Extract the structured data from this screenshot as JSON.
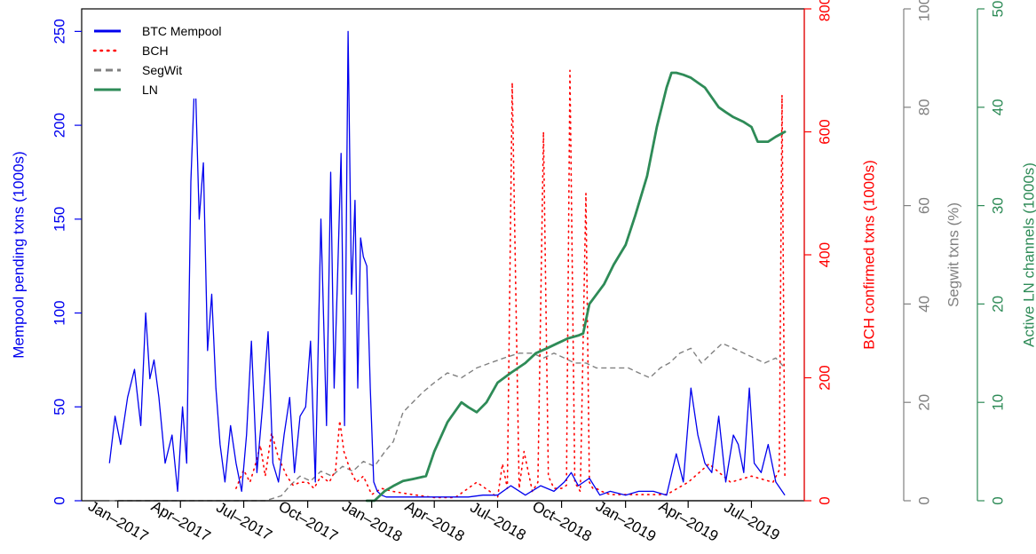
{
  "chart_data": {
    "type": "line",
    "x_ticks": [
      "Jan–2017",
      "Apr–2017",
      "Jul–2017",
      "Oct–2017",
      "Jan–2018",
      "Apr–2018",
      "Jul–2018",
      "Oct–2018",
      "Jan–2019",
      "Apr–2019",
      "Jul–2019"
    ],
    "xlim": [
      "2016-11-10",
      "2019-09-15"
    ],
    "legend": {
      "position": "top-left",
      "entries": [
        {
          "label": "BTC Mempool",
          "color": "#0000ee",
          "style": "solid"
        },
        {
          "label": "BCH",
          "color": "#ff0000",
          "style": "dotted"
        },
        {
          "label": "SegWit",
          "color": "#808080",
          "style": "dashed"
        },
        {
          "label": "LN",
          "color": "#2e8b57",
          "style": "solid"
        }
      ]
    },
    "axes": [
      {
        "id": "mempool",
        "label": "Mempool pending txns (1000s)",
        "color": "#0000ee",
        "ylim": [
          0,
          262
        ],
        "ticks": [
          0,
          50,
          100,
          150,
          200,
          250
        ]
      },
      {
        "id": "bch",
        "label": "BCH confirmed txns (1000s)",
        "color": "#ff0000",
        "ylim": [
          0,
          800
        ],
        "ticks": [
          0,
          200,
          400,
          600,
          800
        ]
      },
      {
        "id": "segwit",
        "label": "Segwit txns (%)",
        "color": "#808080",
        "ylim": [
          0,
          100
        ],
        "ticks": [
          0,
          20,
          40,
          60,
          80,
          100
        ]
      },
      {
        "id": "ln",
        "label": "Active LN channels (1000s)",
        "color": "#2e8b57",
        "ylim": [
          0,
          50
        ],
        "ticks": [
          0,
          10,
          20,
          30,
          40,
          50
        ]
      }
    ],
    "series": [
      {
        "name": "BTC Mempool",
        "axis": "mempool",
        "x": [
          "2016-12-20",
          "2016-12-28",
          "2017-01-05",
          "2017-01-15",
          "2017-01-25",
          "2017-02-03",
          "2017-02-10",
          "2017-02-16",
          "2017-02-22",
          "2017-03-01",
          "2017-03-10",
          "2017-03-20",
          "2017-03-28",
          "2017-04-04",
          "2017-04-10",
          "2017-04-16",
          "2017-04-22",
          "2017-04-28",
          "2017-05-04",
          "2017-05-10",
          "2017-05-16",
          "2017-05-22",
          "2017-05-28",
          "2017-06-04",
          "2017-06-12",
          "2017-06-20",
          "2017-06-28",
          "2017-07-05",
          "2017-07-12",
          "2017-07-20",
          "2017-07-28",
          "2017-08-05",
          "2017-08-12",
          "2017-08-20",
          "2017-08-28",
          "2017-09-05",
          "2017-09-12",
          "2017-09-20",
          "2017-09-28",
          "2017-10-05",
          "2017-10-12",
          "2017-10-20",
          "2017-10-28",
          "2017-11-03",
          "2017-11-08",
          "2017-11-13",
          "2017-11-18",
          "2017-11-23",
          "2017-11-28",
          "2017-12-03",
          "2017-12-08",
          "2017-12-12",
          "2017-12-16",
          "2017-12-20",
          "2017-12-25",
          "2017-12-30",
          "2018-01-04",
          "2018-01-09",
          "2018-01-15",
          "2018-01-22",
          "2018-02-01",
          "2018-02-15",
          "2018-03-01",
          "2018-03-20",
          "2018-04-10",
          "2018-05-01",
          "2018-05-20",
          "2018-06-10",
          "2018-07-01",
          "2018-07-20",
          "2018-08-10",
          "2018-09-01",
          "2018-09-20",
          "2018-10-05",
          "2018-10-15",
          "2018-10-25",
          "2018-11-10",
          "2018-11-25",
          "2018-12-10",
          "2019-01-01",
          "2019-01-20",
          "2019-02-10",
          "2019-03-01",
          "2019-03-15",
          "2019-03-25",
          "2019-04-05",
          "2019-04-15",
          "2019-04-25",
          "2019-05-05",
          "2019-05-15",
          "2019-05-25",
          "2019-06-05",
          "2019-06-12",
          "2019-06-20",
          "2019-06-28",
          "2019-07-05",
          "2019-07-15",
          "2019-07-25",
          "2019-08-05",
          "2019-08-18"
        ],
        "y": [
          20,
          45,
          30,
          55,
          70,
          40,
          100,
          65,
          75,
          55,
          20,
          35,
          5,
          50,
          20,
          170,
          230,
          150,
          180,
          80,
          110,
          60,
          30,
          10,
          40,
          20,
          5,
          35,
          85,
          15,
          50,
          90,
          20,
          10,
          35,
          55,
          15,
          45,
          50,
          85,
          10,
          150,
          40,
          175,
          60,
          120,
          185,
          40,
          250,
          110,
          160,
          60,
          140,
          130,
          125,
          60,
          10,
          5,
          3,
          2,
          2,
          2,
          2,
          2,
          2,
          2,
          2,
          3,
          3,
          8,
          3,
          8,
          5,
          10,
          15,
          8,
          12,
          3,
          5,
          3,
          5,
          5,
          3,
          25,
          10,
          60,
          35,
          20,
          15,
          45,
          10,
          35,
          30,
          15,
          60,
          20,
          15,
          30,
          10,
          3
        ]
      },
      {
        "name": "BCH",
        "axis": "bch",
        "x": [
          "2017-06-20",
          "2017-07-01",
          "2017-07-10",
          "2017-07-18",
          "2017-07-25",
          "2017-08-01",
          "2017-08-10",
          "2017-08-20",
          "2017-09-01",
          "2017-09-10",
          "2017-09-20",
          "2017-10-01",
          "2017-10-10",
          "2017-10-20",
          "2017-11-01",
          "2017-11-10",
          "2017-11-16",
          "2017-11-22",
          "2017-12-01",
          "2017-12-10",
          "2017-12-20",
          "2018-01-01",
          "2018-01-15",
          "2018-02-01",
          "2018-03-01",
          "2018-04-01",
          "2018-05-01",
          "2018-06-01",
          "2018-06-20",
          "2018-07-01",
          "2018-07-08",
          "2018-07-15",
          "2018-07-22",
          "2018-08-01",
          "2018-08-08",
          "2018-08-20",
          "2018-08-28",
          "2018-09-05",
          "2018-09-12",
          "2018-09-20",
          "2018-10-01",
          "2018-10-08",
          "2018-10-13",
          "2018-10-20",
          "2018-10-28",
          "2018-11-05",
          "2018-11-10",
          "2018-11-15",
          "2018-11-20",
          "2018-11-28",
          "2018-12-10",
          "2019-01-01",
          "2019-02-01",
          "2019-03-01",
          "2019-04-01",
          "2019-05-01",
          "2019-06-01",
          "2019-07-01",
          "2019-08-01",
          "2019-08-10",
          "2019-08-14",
          "2019-08-18"
        ],
        "y": [
          20,
          50,
          30,
          60,
          90,
          40,
          110,
          70,
          40,
          25,
          30,
          30,
          20,
          40,
          30,
          50,
          130,
          80,
          50,
          30,
          40,
          10,
          20,
          15,
          10,
          5,
          5,
          30,
          15,
          5,
          60,
          20,
          680,
          20,
          80,
          15,
          30,
          600,
          40,
          20,
          20,
          25,
          700,
          30,
          15,
          500,
          30,
          20,
          20,
          15,
          10,
          10,
          10,
          10,
          30,
          60,
          30,
          40,
          30,
          50,
          660,
          40
        ]
      },
      {
        "name": "SegWit",
        "axis": "segwit",
        "x": [
          "2016-12-20",
          "2017-08-01",
          "2017-08-24",
          "2017-09-05",
          "2017-09-20",
          "2017-10-05",
          "2017-10-20",
          "2017-11-05",
          "2017-11-20",
          "2017-12-05",
          "2017-12-20",
          "2018-01-05",
          "2018-01-20",
          "2018-02-01",
          "2018-02-15",
          "2018-03-01",
          "2018-03-15",
          "2018-04-01",
          "2018-04-20",
          "2018-05-10",
          "2018-06-01",
          "2018-06-20",
          "2018-07-10",
          "2018-08-01",
          "2018-08-20",
          "2018-09-05",
          "2018-09-20",
          "2018-10-05",
          "2018-10-20",
          "2018-11-05",
          "2018-11-20",
          "2018-12-05",
          "2018-12-20",
          "2019-01-05",
          "2019-01-20",
          "2019-02-05",
          "2019-02-20",
          "2019-03-05",
          "2019-03-20",
          "2019-04-05",
          "2019-04-20",
          "2019-05-05",
          "2019-05-20",
          "2019-06-05",
          "2019-06-20",
          "2019-07-05",
          "2019-07-20",
          "2019-08-05",
          "2019-08-18"
        ],
        "y": [
          0,
          0,
          1,
          3,
          5,
          4,
          6,
          5,
          7,
          6,
          8,
          7,
          10,
          12,
          18,
          20,
          22,
          24,
          26,
          25,
          27,
          28,
          29,
          30,
          30,
          29,
          30,
          29,
          28,
          28,
          27,
          27,
          27,
          27,
          26,
          25,
          27,
          28,
          30,
          31,
          28,
          30,
          32,
          31,
          30,
          29,
          28,
          29,
          27
        ]
      },
      {
        "name": "LN",
        "axis": "ln",
        "x": [
          "2017-12-25",
          "2018-01-05",
          "2018-01-20",
          "2018-02-01",
          "2018-02-15",
          "2018-03-01",
          "2018-03-20",
          "2018-04-01",
          "2018-04-20",
          "2018-05-10",
          "2018-05-20",
          "2018-06-01",
          "2018-06-15",
          "2018-07-01",
          "2018-07-20",
          "2018-08-10",
          "2018-08-25",
          "2018-09-10",
          "2018-09-25",
          "2018-10-10",
          "2018-10-25",
          "2018-11-01",
          "2018-11-10",
          "2018-12-01",
          "2018-12-15",
          "2019-01-01",
          "2019-01-15",
          "2019-02-01",
          "2019-02-15",
          "2019-03-01",
          "2019-03-08",
          "2019-03-15",
          "2019-03-25",
          "2019-04-05",
          "2019-04-15",
          "2019-04-25",
          "2019-05-05",
          "2019-05-15",
          "2019-05-25",
          "2019-06-05",
          "2019-06-20",
          "2019-07-01",
          "2019-07-10",
          "2019-07-25",
          "2019-08-05",
          "2019-08-18"
        ],
        "y": [
          0,
          0,
          1,
          1.5,
          2,
          2.2,
          2.5,
          5,
          8,
          10,
          9.5,
          9,
          10,
          12,
          13,
          14,
          15,
          15.5,
          16,
          16.5,
          16.8,
          17,
          20,
          22,
          24,
          26,
          29,
          33,
          38,
          42,
          43.5,
          43.5,
          43.3,
          43,
          42.5,
          42,
          41,
          40,
          39.5,
          39,
          38.5,
          38,
          36.5,
          36.5,
          37,
          37.5
        ]
      }
    ]
  }
}
